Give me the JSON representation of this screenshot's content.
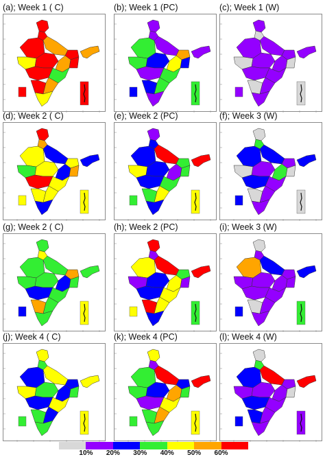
{
  "colors": {
    "c0": "#d8d8d8",
    "c1": "#9400ff",
    "c2": "#0000ff",
    "c3": "#33ee33",
    "c4": "#ffff00",
    "c5": "#ffa500",
    "c6": "#ff0000",
    "white": "#ffffff"
  },
  "panels": [
    {
      "title": "(a); Week 1 ( C)",
      "regions": [
        "c6",
        "c6",
        "c6",
        "c5",
        "c6",
        "c4",
        "c6",
        "c5",
        "c6",
        "c6",
        "c3",
        "c6",
        "c5",
        "c4"
      ],
      "inset_box": "c6",
      "inset_island": "c6"
    },
    {
      "title": "(b); Week 1 (PC)",
      "regions": [
        "c1",
        "c1",
        "c3",
        "c1",
        "c5",
        "c3",
        "c2",
        "c4",
        "c2",
        "c1",
        "c3",
        "c2",
        "c3",
        "c1"
      ],
      "inset_box": "c2",
      "inset_island": "c3"
    },
    {
      "title": "(c); Week 1 (W)",
      "regions": [
        "c1",
        "c0",
        "c1",
        "c1",
        "c1",
        "c0",
        "c1",
        "c1",
        "c0",
        "c1",
        "c1",
        "c0",
        "c1",
        "c1"
      ],
      "inset_box": "c1",
      "inset_island": "c0"
    },
    {
      "title": "(d); Week 2 ( C)",
      "regions": [
        "c6",
        "c5",
        "c4",
        "c2",
        "c4",
        "c3",
        "c4",
        "c2",
        "c5",
        "c6",
        "c4",
        "c4",
        "c4",
        "c2"
      ],
      "inset_box": "c4",
      "inset_island": "c4"
    },
    {
      "title": "(e); Week 2 (PC)",
      "regions": [
        "c1",
        "c2",
        "c2",
        "c6",
        "c3",
        "c4",
        "c2",
        "c1",
        "c3",
        "c2",
        "c3",
        "c3",
        "c4",
        "c2"
      ],
      "inset_box": "c3",
      "inset_island": "c4"
    },
    {
      "title": "(f); Week 3 (W)",
      "regions": [
        "c0",
        "c3",
        "c2",
        "c2",
        "c1",
        "c0",
        "c1",
        "c3",
        "c0",
        "c2",
        "c1",
        "c0",
        "c1",
        "c1"
      ],
      "inset_box": "c2",
      "inset_island": "c0"
    },
    {
      "title": "(g); Week 2 ( C)",
      "regions": [
        "c3",
        "c4",
        "c3",
        "c3",
        "c5",
        "c3",
        "c3",
        "c2",
        "c3",
        "c2",
        "c3",
        "c5",
        "c3",
        "c3"
      ],
      "inset_box": "c2",
      "inset_island": "c4"
    },
    {
      "title": "(h); Week 2 (PC)",
      "regions": [
        "c6",
        "c1",
        "c4",
        "c6",
        "c3",
        "c1",
        "c2",
        "c4",
        "c1",
        "c2",
        "c4",
        "c6",
        "c4",
        "c2"
      ],
      "inset_box": "c4",
      "inset_island": "c3"
    },
    {
      "title": "(i); Week 3 (W)",
      "regions": [
        "c0",
        "c1",
        "c5",
        "c2",
        "c1",
        "c1",
        "c1",
        "c1",
        "c1",
        "c1",
        "c1",
        "c0",
        "c1",
        "c1"
      ],
      "inset_box": "c2",
      "inset_island": "c3"
    },
    {
      "title": "(j); Week 4 ( C)",
      "regions": [
        "c4",
        "c3",
        "c2",
        "c4",
        "c2",
        "c4",
        "c3",
        "c2",
        "c3",
        "c2",
        "c4",
        "c3",
        "c2",
        "c3"
      ],
      "inset_box": "c3",
      "inset_island": "c4"
    },
    {
      "title": "(k); Week 4 (PC)",
      "regions": [
        "c4",
        "c1",
        "c3",
        "c6",
        "c2",
        "c3",
        "c2",
        "c5",
        "c3",
        "c1",
        "c4",
        "c3",
        "c5",
        "c3"
      ],
      "inset_box": "c3",
      "inset_island": "c4"
    },
    {
      "title": "(l); Week 4 (W)",
      "regions": [
        "c0",
        "c3",
        "c2",
        "c6",
        "c1",
        "c1",
        "c1",
        "c1",
        "c0",
        "c2",
        "c1",
        "c2",
        "c1",
        "c1"
      ],
      "inset_box": "c2",
      "inset_island": "c1"
    }
  ],
  "legend": {
    "swatches": [
      "c0",
      "c1",
      "c2",
      "c3",
      "c4",
      "c5",
      "c6"
    ],
    "labels": [
      "10%",
      "20%",
      "30%",
      "40%",
      "50%",
      "60%"
    ]
  }
}
